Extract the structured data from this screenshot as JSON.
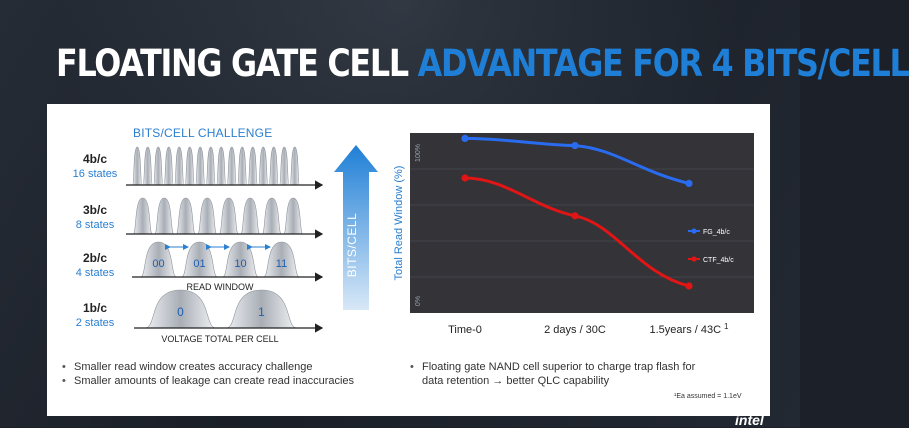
{
  "slide": {
    "title_part1": "FLOATING GATE CELL",
    "title_part2": "ADVANTAGE FOR 4 BITS/CELL",
    "logo_text": "intel"
  },
  "left": {
    "heading": "BITS/CELL CHALLENGE",
    "rows": [
      {
        "label": "4b/c",
        "states": "16 states"
      },
      {
        "label": "3b/c",
        "states": "8 states"
      },
      {
        "label": "2b/c",
        "states": "4 states"
      },
      {
        "label": "1b/c",
        "states": "2 states"
      }
    ],
    "two_bit_codes": [
      "00",
      "01",
      "10",
      "11"
    ],
    "one_bit_codes": [
      "0",
      "1"
    ],
    "read_window_label": "READ WINDOW",
    "voltage_label": "VOLTAGE TOTAL PER CELL",
    "arrow_label": "BITS/CELL",
    "bullets": [
      "Smaller read window creates accuracy challenge",
      "Smaller amounts of leakage can create read inaccuracies"
    ]
  },
  "right": {
    "bullets": [
      "Floating gate NAND cell superior to charge trap flash for",
      "data retention → better QLC capability"
    ],
    "footnote": "¹Ea assumed = 1.1eV"
  },
  "chart_data": {
    "type": "line",
    "ylabel": "Total Read Window (%)",
    "y_tick_labels": [
      "100%",
      "0%"
    ],
    "ylim": [
      0,
      100
    ],
    "categories": [
      "Time-0",
      "2 days / 30C",
      "1.5years / 43C"
    ],
    "category_superscripts": [
      "",
      "",
      "1"
    ],
    "background": "#333338",
    "series": [
      {
        "name": "FG_4b/c",
        "color": "#2a6cf0",
        "values": [
          97,
          93,
          72
        ]
      },
      {
        "name": "CTF_4b/c",
        "color": "#e01515",
        "values": [
          75,
          54,
          15
        ]
      }
    ]
  }
}
